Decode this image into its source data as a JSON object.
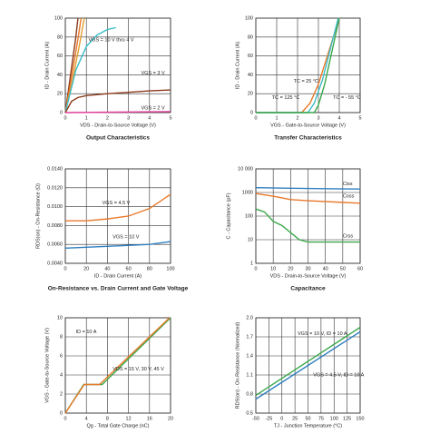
{
  "chart_data": [
    {
      "type": "line",
      "title": "Output Characteristics",
      "xlabel": "VDS - Drain-to-Source Voltage (V)",
      "ylabel": "ID - Drain Current (A)",
      "xlim": [
        0,
        5
      ],
      "xticks": [
        0,
        1,
        2,
        3,
        4,
        5
      ],
      "ylim": [
        0,
        100
      ],
      "yticks": [
        0,
        20,
        40,
        60,
        80,
        100
      ],
      "grid": true,
      "series": [
        {
          "color": "#8b3a1a",
          "x": [
            0,
            0.25,
            0.5,
            0.6
          ],
          "values": [
            0,
            40,
            80,
            100
          ]
        },
        {
          "color": "#e8792b",
          "x": [
            0,
            0.3,
            0.6,
            0.75
          ],
          "values": [
            0,
            38,
            78,
            100
          ]
        },
        {
          "color": "#e0a030",
          "x": [
            0,
            0.35,
            0.7,
            0.9
          ],
          "values": [
            0,
            35,
            75,
            100
          ]
        },
        {
          "color": "#3cbcc8",
          "x": [
            0,
            0.5,
            1,
            1.5,
            2,
            2.4
          ],
          "values": [
            0,
            45,
            70,
            82,
            88,
            90
          ]
        },
        {
          "color": "#8b3a1a",
          "x": [
            0,
            0.3,
            0.6,
            1,
            2,
            3,
            4,
            5
          ],
          "values": [
            0,
            12,
            16,
            18,
            20,
            21.5,
            23,
            24
          ]
        },
        {
          "color": "#e0409a",
          "x": [
            0,
            5
          ],
          "values": [
            0,
            1
          ]
        }
      ],
      "annotations": [
        "VGS = 10 V thru 4 V",
        "VGS = 3 V",
        "VGS = 2 V"
      ]
    },
    {
      "type": "line",
      "title": "Transfer Characteristics",
      "xlabel": "VGS - Gate-to-Source Voltage (V)",
      "ylabel": "ID - Drain Current (A)",
      "xlim": [
        0,
        5
      ],
      "xticks": [
        0,
        1,
        2,
        3,
        4,
        5
      ],
      "ylim": [
        0,
        100
      ],
      "yticks": [
        0,
        20,
        40,
        60,
        80,
        100
      ],
      "grid": true,
      "series": [
        {
          "color": "#e8792b",
          "x": [
            0,
            2.2,
            2.6,
            3,
            3.5,
            4
          ],
          "values": [
            0,
            0,
            10,
            30,
            65,
            100
          ]
        },
        {
          "color": "#3cbcc8",
          "x": [
            0,
            2.5,
            2.8,
            3.2,
            3.6,
            3.95
          ],
          "values": [
            0,
            0,
            10,
            35,
            70,
            100
          ]
        },
        {
          "color": "#3aa84a",
          "x": [
            0,
            2.8,
            3,
            3.3,
            3.6,
            4
          ],
          "values": [
            0,
            0,
            8,
            30,
            60,
            100
          ]
        }
      ],
      "annotations": [
        "TC = 25 °C",
        "TC = 125 °C",
        "TC = - 55 °C"
      ]
    },
    {
      "type": "line",
      "title": "On-Resistance vs. Drain Current and Gate Voltage",
      "xlabel": "ID - Drain Current (A)",
      "ylabel": "RDS(on) - On-Resistance (Ω)",
      "xlim": [
        0,
        100
      ],
      "xticks": [
        0,
        20,
        40,
        60,
        80,
        100
      ],
      "ylim": [
        0.004,
        0.014
      ],
      "yticks": [
        {
          "value": 0.004,
          "label": "0.0040"
        },
        {
          "value": 0.006,
          "label": "0.0060"
        },
        {
          "value": 0.008,
          "label": "0.0080"
        },
        {
          "value": 0.01,
          "label": "0.0100"
        },
        {
          "value": 0.012,
          "label": "0.0120"
        },
        {
          "value": 0.014,
          "label": "0.0140"
        }
      ],
      "grid": true,
      "series": [
        {
          "color": "#e8792b",
          "x": [
            0,
            20,
            40,
            60,
            80,
            100
          ],
          "values": [
            0.0085,
            0.0085,
            0.0087,
            0.009,
            0.0098,
            0.0113
          ]
        },
        {
          "color": "#2f7fc0",
          "x": [
            0,
            20,
            40,
            60,
            80,
            100
          ],
          "values": [
            0.0056,
            0.0057,
            0.0058,
            0.0059,
            0.006,
            0.0063
          ]
        }
      ],
      "annotations": [
        "VGS = 4.5 V",
        "VGS = 10 V"
      ]
    },
    {
      "type": "line",
      "title": "Capacitance",
      "xlabel": "VDS - Drain-to-Source Voltage (V)",
      "ylabel": "C - Capacitance (pF)",
      "xlim": [
        0,
        60
      ],
      "xticks": [
        0,
        10,
        20,
        30,
        40,
        50,
        60
      ],
      "ylim": [
        1,
        10000
      ],
      "ylog": true,
      "yticks": [
        1,
        10,
        100,
        1000,
        {
          "value": 10000,
          "label": "10 000"
        }
      ],
      "grid": true,
      "series": [
        {
          "color": "#2f7fc0",
          "x": [
            0,
            20,
            40,
            60
          ],
          "values": [
            1600,
            1520,
            1450,
            1400
          ]
        },
        {
          "color": "#e8792b",
          "x": [
            0,
            10,
            20,
            30,
            60
          ],
          "values": [
            900,
            700,
            500,
            450,
            350
          ]
        },
        {
          "color": "#3aa84a",
          "x": [
            0,
            5,
            10,
            15,
            20,
            25,
            30,
            60
          ],
          "values": [
            200,
            150,
            60,
            40,
            20,
            10,
            8,
            8
          ]
        }
      ],
      "annotations": [
        "Ciss",
        "Coss",
        "Crss"
      ]
    },
    {
      "type": "line",
      "xlabel": "Qg - Total Gate Charge (nC)",
      "ylabel": "VGS - Gate-to-Source Voltage (V)",
      "xlim": [
        0,
        20
      ],
      "xticks": [
        0,
        4,
        8,
        12,
        16,
        20
      ],
      "ylim": [
        0,
        10
      ],
      "yticks": [
        0,
        2,
        4,
        6,
        8,
        10
      ],
      "grid": true,
      "series": [
        {
          "color": "#3aa84a",
          "x": [
            0,
            3.5,
            7,
            20
          ],
          "values": [
            0,
            3,
            3,
            10
          ]
        },
        {
          "color": "#e8792b",
          "x": [
            0,
            3.6,
            6.5,
            19.8
          ],
          "values": [
            0,
            3,
            3,
            10
          ]
        }
      ],
      "annotations": [
        "ID = 10 A",
        "VDS = 15 V, 30 V, 45 V"
      ]
    },
    {
      "type": "line",
      "xlabel": "TJ - Junction Temperature (°C)",
      "ylabel": "RDS(on) - On-Resistance (Normalized)",
      "xlim": [
        -50,
        150
      ],
      "xticks": [
        -50,
        -25,
        0,
        25,
        50,
        75,
        100,
        125,
        150
      ],
      "ylim": [
        0.5,
        2
      ],
      "yticks": [
        0.5,
        0.8,
        1.1,
        1.4,
        1.7,
        {
          "value": 2,
          "label": "2.0"
        }
      ],
      "grid": true,
      "series": [
        {
          "color": "#2f7fc0",
          "x": [
            -50,
            150
          ],
          "values": [
            0.72,
            1.78
          ]
        },
        {
          "color": "#3aa84a",
          "x": [
            -50,
            150
          ],
          "values": [
            0.78,
            1.85
          ]
        }
      ],
      "annotations": [
        "VGS = 10 V, ID = 10 A",
        "VGS = 4.5 V, ID = 10 A"
      ]
    }
  ]
}
